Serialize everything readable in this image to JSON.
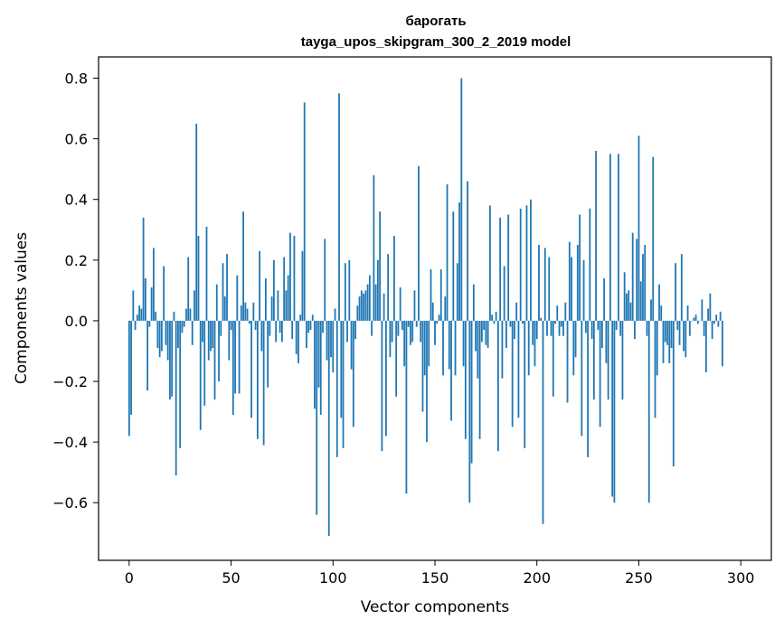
{
  "chart_data": {
    "type": "bar",
    "title": "барогать",
    "subtitle": "tayga_upos_skipgram_300_2_2019 model",
    "xlabel": "Vector components",
    "ylabel": "Components values",
    "xlim": [
      -15,
      315
    ],
    "ylim": [
      -0.79,
      0.87
    ],
    "xticks": [
      0,
      50,
      100,
      150,
      200,
      250,
      300
    ],
    "yticks": [
      -0.6,
      -0.4,
      -0.2,
      0.0,
      0.2,
      0.4,
      0.6,
      0.8
    ],
    "xtick_labels": [
      "0",
      "50",
      "100",
      "150",
      "200",
      "250",
      "300"
    ],
    "ytick_labels": [
      "−0.6",
      "−0.4",
      "−0.2",
      "0.0",
      "0.2",
      "0.4",
      "0.6",
      "0.8"
    ],
    "bar_color": "#1f77b4",
    "grid": false,
    "values": [
      -0.38,
      -0.31,
      0.1,
      -0.03,
      0.02,
      0.05,
      0.04,
      0.34,
      0.14,
      -0.23,
      -0.02,
      0.11,
      0.24,
      0.03,
      -0.09,
      -0.12,
      -0.1,
      0.18,
      -0.08,
      -0.13,
      -0.26,
      -0.25,
      0.03,
      -0.51,
      -0.09,
      -0.42,
      -0.04,
      -0.02,
      0.04,
      0.21,
      0.04,
      -0.08,
      0.1,
      0.65,
      0.28,
      -0.36,
      -0.07,
      -0.28,
      0.31,
      -0.13,
      -0.1,
      -0.09,
      -0.26,
      0.12,
      -0.2,
      -0.05,
      0.19,
      0.08,
      0.22,
      -0.13,
      -0.03,
      -0.31,
      -0.24,
      0.15,
      -0.24,
      0.05,
      0.36,
      0.06,
      0.04,
      -0.01,
      -0.32,
      0.06,
      -0.03,
      -0.39,
      0.23,
      -0.1,
      -0.41,
      0.14,
      -0.22,
      -0.05,
      0.08,
      0.2,
      -0.07,
      0.1,
      -0.04,
      -0.07,
      0.21,
      0.1,
      0.15,
      0.29,
      -0.06,
      0.28,
      -0.11,
      -0.14,
      0.02,
      0.23,
      0.72,
      -0.09,
      -0.04,
      -0.03,
      0.02,
      -0.29,
      -0.64,
      -0.22,
      -0.31,
      -0.04,
      0.27,
      -0.13,
      -0.71,
      -0.12,
      -0.17,
      0.04,
      -0.45,
      0.75,
      -0.32,
      -0.42,
      0.19,
      -0.07,
      0.2,
      -0.16,
      -0.35,
      -0.06,
      0.05,
      0.08,
      0.1,
      0.09,
      0.1,
      0.12,
      0.15,
      -0.05,
      0.48,
      0.12,
      0.2,
      0.36,
      -0.43,
      0.09,
      -0.38,
      0.22,
      -0.12,
      -0.07,
      0.28,
      -0.25,
      -0.05,
      0.11,
      -0.03,
      -0.15,
      -0.57,
      -0.02,
      -0.08,
      -0.07,
      0.1,
      -0.02,
      0.51,
      -0.07,
      -0.3,
      -0.18,
      -0.4,
      -0.15,
      0.17,
      0.06,
      -0.08,
      -0.01,
      0.02,
      0.17,
      -0.18,
      0.08,
      0.45,
      -0.16,
      -0.33,
      0.36,
      -0.18,
      0.19,
      0.39,
      0.8,
      -0.15,
      -0.39,
      0.46,
      -0.6,
      -0.47,
      0.12,
      -0.1,
      -0.19,
      -0.39,
      -0.07,
      -0.03,
      -0.08,
      -0.09,
      0.38,
      0.02,
      -0.01,
      0.03,
      -0.43,
      0.34,
      -0.19,
      0.18,
      -0.09,
      0.35,
      -0.02,
      -0.35,
      -0.06,
      0.06,
      -0.32,
      0.37,
      -0.01,
      -0.42,
      0.38,
      -0.18,
      0.4,
      -0.08,
      -0.15,
      -0.06,
      0.25,
      0.01,
      -0.67,
      0.24,
      -0.05,
      0.21,
      -0.05,
      -0.25,
      -0.01,
      0.05,
      -0.05,
      -0.02,
      -0.05,
      0.06,
      -0.27,
      0.26,
      0.21,
      -0.18,
      -0.12,
      0.25,
      0.35,
      -0.38,
      0.2,
      -0.04,
      -0.45,
      0.37,
      -0.06,
      -0.26,
      0.56,
      -0.03,
      -0.35,
      -0.09,
      0.14,
      -0.14,
      -0.26,
      0.55,
      -0.58,
      -0.6,
      -0.03,
      0.55,
      -0.05,
      -0.26,
      0.16,
      0.09,
      0.1,
      0.06,
      0.29,
      -0.06,
      0.27,
      0.61,
      0.13,
      0.22,
      0.25,
      -0.05,
      -0.6,
      0.07,
      0.54,
      -0.32,
      -0.18,
      0.12,
      0.05,
      -0.14,
      -0.07,
      -0.08,
      -0.14,
      -0.09,
      -0.48,
      0.19,
      -0.03,
      -0.08,
      0.22,
      -0.1,
      -0.12,
      0.05,
      -0.05,
      0.0,
      0.01,
      0.02,
      -0.01,
      0.0,
      0.07,
      -0.05,
      -0.17,
      0.04,
      0.09,
      -0.06,
      -0.01,
      0.02,
      -0.02,
      0.03,
      -0.15
    ]
  }
}
